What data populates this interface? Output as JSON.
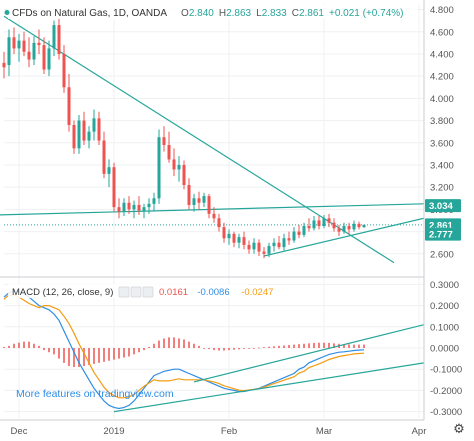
{
  "header": {
    "symbol": "CFDs on Natural Gas, 1D, OANDA",
    "ohlc": [
      {
        "k": "O",
        "v": "2.840"
      },
      {
        "k": "H",
        "v": "2.863"
      },
      {
        "k": "L",
        "v": "2.833"
      },
      {
        "k": "C",
        "v": "2.861"
      }
    ],
    "change": "+0.021 (+0.74%)",
    "colors": {
      "up": "#26a69a",
      "down": "#ef5350",
      "label": "#555555",
      "value": "#26a69a"
    }
  },
  "price_badges": [
    {
      "text": "3.034",
      "value": 3.034,
      "color": "#26a69a"
    },
    {
      "text": "2.861",
      "value": 2.861,
      "color": "#26a69a"
    },
    {
      "text": "2.777",
      "value": 2.777,
      "color": "#26a69a"
    }
  ],
  "macd_header": {
    "label": "MACD (12, 26, close, 9)",
    "values": [
      {
        "text": "0.0161",
        "color": "#ef5350"
      },
      {
        "text": "-0.0086",
        "color": "#2f8de4"
      },
      {
        "text": "-0.0247",
        "color": "#f39c12"
      }
    ]
  },
  "overlay_link": "More features on tradingview.com",
  "settings_icon": "gear-icon",
  "chart_data": [
    {
      "type": "candlestick",
      "title": "CFDs on Natural Gas, 1D, OANDA",
      "ylim": [
        2.4,
        4.85
      ],
      "yticks": [
        "4.800",
        "4.600",
        "4.400",
        "4.200",
        "4.000",
        "3.800",
        "3.600",
        "3.400",
        "3.200",
        "3.000",
        "2.800",
        "2.600"
      ],
      "ytick_values": [
        4.8,
        4.6,
        4.4,
        4.2,
        4.0,
        3.8,
        3.6,
        3.4,
        3.2,
        3.0,
        2.8,
        2.6
      ],
      "x_range": [
        0,
        84
      ],
      "xticks": [
        {
          "label": "Dec",
          "x": 3
        },
        {
          "label": "2019",
          "x": 22
        },
        {
          "label": "Feb",
          "x": 45
        },
        {
          "label": "Mar",
          "x": 64
        },
        {
          "label": "Apr",
          "x": 83
        }
      ],
      "colors": {
        "up": "#26a69a",
        "down": "#ef5350"
      },
      "candles": [
        {
          "x": 0,
          "o": 4.32,
          "h": 4.42,
          "l": 4.18,
          "c": 4.28
        },
        {
          "x": 1,
          "o": 4.3,
          "h": 4.62,
          "l": 4.2,
          "c": 4.55
        },
        {
          "x": 2,
          "o": 4.55,
          "h": 4.64,
          "l": 4.4,
          "c": 4.45
        },
        {
          "x": 3,
          "o": 4.45,
          "h": 4.58,
          "l": 4.33,
          "c": 4.52
        },
        {
          "x": 4,
          "o": 4.52,
          "h": 4.6,
          "l": 4.38,
          "c": 4.42
        },
        {
          "x": 5,
          "o": 4.42,
          "h": 4.55,
          "l": 4.28,
          "c": 4.35
        },
        {
          "x": 6,
          "o": 4.35,
          "h": 4.56,
          "l": 4.3,
          "c": 4.5
        },
        {
          "x": 7,
          "o": 4.5,
          "h": 4.62,
          "l": 4.4,
          "c": 4.48
        },
        {
          "x": 8,
          "o": 4.48,
          "h": 4.55,
          "l": 4.22,
          "c": 4.26
        },
        {
          "x": 9,
          "o": 4.26,
          "h": 4.52,
          "l": 4.2,
          "c": 4.45
        },
        {
          "x": 10,
          "o": 4.45,
          "h": 4.7,
          "l": 4.38,
          "c": 4.66
        },
        {
          "x": 11,
          "o": 4.66,
          "h": 4.72,
          "l": 4.35,
          "c": 4.4
        },
        {
          "x": 12,
          "o": 4.4,
          "h": 4.48,
          "l": 4.05,
          "c": 4.1
        },
        {
          "x": 13,
          "o": 4.1,
          "h": 4.22,
          "l": 3.7,
          "c": 3.76
        },
        {
          "x": 14,
          "o": 3.76,
          "h": 3.8,
          "l": 3.5,
          "c": 3.55
        },
        {
          "x": 15,
          "o": 3.55,
          "h": 3.85,
          "l": 3.5,
          "c": 3.8
        },
        {
          "x": 16,
          "o": 3.8,
          "h": 3.88,
          "l": 3.58,
          "c": 3.62
        },
        {
          "x": 17,
          "o": 3.62,
          "h": 3.75,
          "l": 3.55,
          "c": 3.7
        },
        {
          "x": 18,
          "o": 3.7,
          "h": 3.9,
          "l": 3.62,
          "c": 3.82
        },
        {
          "x": 19,
          "o": 3.82,
          "h": 3.88,
          "l": 3.58,
          "c": 3.62
        },
        {
          "x": 20,
          "o": 3.62,
          "h": 3.7,
          "l": 3.28,
          "c": 3.32
        },
        {
          "x": 21,
          "o": 3.32,
          "h": 3.45,
          "l": 3.2,
          "c": 3.38
        },
        {
          "x": 22,
          "o": 3.38,
          "h": 3.42,
          "l": 2.98,
          "c": 3.02
        },
        {
          "x": 23,
          "o": 3.02,
          "h": 3.1,
          "l": 2.92,
          "c": 2.98
        },
        {
          "x": 24,
          "o": 2.98,
          "h": 3.1,
          "l": 2.94,
          "c": 3.06
        },
        {
          "x": 25,
          "o": 3.06,
          "h": 3.12,
          "l": 2.96,
          "c": 3.0
        },
        {
          "x": 26,
          "o": 3.0,
          "h": 3.08,
          "l": 2.92,
          "c": 3.04
        },
        {
          "x": 27,
          "o": 3.04,
          "h": 3.12,
          "l": 2.95,
          "c": 2.99
        },
        {
          "x": 28,
          "o": 2.99,
          "h": 3.05,
          "l": 2.92,
          "c": 3.02
        },
        {
          "x": 29,
          "o": 3.02,
          "h": 3.1,
          "l": 2.96,
          "c": 3.05
        },
        {
          "x": 30,
          "o": 3.05,
          "h": 3.15,
          "l": 2.98,
          "c": 3.1
        },
        {
          "x": 31,
          "o": 3.1,
          "h": 3.72,
          "l": 3.05,
          "c": 3.65
        },
        {
          "x": 32,
          "o": 3.65,
          "h": 3.75,
          "l": 3.52,
          "c": 3.58
        },
        {
          "x": 33,
          "o": 3.58,
          "h": 3.7,
          "l": 3.42,
          "c": 3.45
        },
        {
          "x": 34,
          "o": 3.45,
          "h": 3.55,
          "l": 3.3,
          "c": 3.36
        },
        {
          "x": 35,
          "o": 3.36,
          "h": 3.48,
          "l": 3.25,
          "c": 3.4
        },
        {
          "x": 36,
          "o": 3.4,
          "h": 3.44,
          "l": 3.18,
          "c": 3.22
        },
        {
          "x": 37,
          "o": 3.22,
          "h": 3.28,
          "l": 3.0,
          "c": 3.04
        },
        {
          "x": 38,
          "o": 3.04,
          "h": 3.14,
          "l": 2.98,
          "c": 3.1
        },
        {
          "x": 39,
          "o": 3.1,
          "h": 3.16,
          "l": 3.0,
          "c": 3.06
        },
        {
          "x": 40,
          "o": 3.06,
          "h": 3.15,
          "l": 3.02,
          "c": 3.12
        },
        {
          "x": 41,
          "o": 3.12,
          "h": 3.14,
          "l": 2.92,
          "c": 2.96
        },
        {
          "x": 42,
          "o": 2.96,
          "h": 3.02,
          "l": 2.88,
          "c": 2.92
        },
        {
          "x": 43,
          "o": 2.92,
          "h": 2.96,
          "l": 2.8,
          "c": 2.84
        },
        {
          "x": 44,
          "o": 2.84,
          "h": 2.88,
          "l": 2.7,
          "c": 2.74
        },
        {
          "x": 45,
          "o": 2.74,
          "h": 2.82,
          "l": 2.68,
          "c": 2.78
        },
        {
          "x": 46,
          "o": 2.78,
          "h": 2.8,
          "l": 2.66,
          "c": 2.7
        },
        {
          "x": 47,
          "o": 2.7,
          "h": 2.78,
          "l": 2.65,
          "c": 2.75
        },
        {
          "x": 48,
          "o": 2.75,
          "h": 2.8,
          "l": 2.64,
          "c": 2.68
        },
        {
          "x": 49,
          "o": 2.68,
          "h": 2.72,
          "l": 2.6,
          "c": 2.64
        },
        {
          "x": 50,
          "o": 2.64,
          "h": 2.74,
          "l": 2.6,
          "c": 2.7
        },
        {
          "x": 51,
          "o": 2.7,
          "h": 2.73,
          "l": 2.58,
          "c": 2.62
        },
        {
          "x": 52,
          "o": 2.62,
          "h": 2.66,
          "l": 2.56,
          "c": 2.6
        },
        {
          "x": 53,
          "o": 2.6,
          "h": 2.7,
          "l": 2.57,
          "c": 2.67
        },
        {
          "x": 54,
          "o": 2.67,
          "h": 2.74,
          "l": 2.62,
          "c": 2.7
        },
        {
          "x": 55,
          "o": 2.7,
          "h": 2.76,
          "l": 2.64,
          "c": 2.66
        },
        {
          "x": 56,
          "o": 2.66,
          "h": 2.78,
          "l": 2.63,
          "c": 2.74
        },
        {
          "x": 57,
          "o": 2.74,
          "h": 2.8,
          "l": 2.68,
          "c": 2.72
        },
        {
          "x": 58,
          "o": 2.72,
          "h": 2.84,
          "l": 2.7,
          "c": 2.8
        },
        {
          "x": 59,
          "o": 2.8,
          "h": 2.86,
          "l": 2.74,
          "c": 2.77
        },
        {
          "x": 60,
          "o": 2.77,
          "h": 2.88,
          "l": 2.75,
          "c": 2.85
        },
        {
          "x": 61,
          "o": 2.85,
          "h": 2.92,
          "l": 2.8,
          "c": 2.83
        },
        {
          "x": 62,
          "o": 2.83,
          "h": 2.94,
          "l": 2.81,
          "c": 2.9
        },
        {
          "x": 63,
          "o": 2.9,
          "h": 2.94,
          "l": 2.82,
          "c": 2.85
        },
        {
          "x": 64,
          "o": 2.85,
          "h": 2.95,
          "l": 2.83,
          "c": 2.92
        },
        {
          "x": 65,
          "o": 2.92,
          "h": 2.96,
          "l": 2.84,
          "c": 2.88
        },
        {
          "x": 66,
          "o": 2.88,
          "h": 2.92,
          "l": 2.8,
          "c": 2.83
        },
        {
          "x": 67,
          "o": 2.83,
          "h": 2.86,
          "l": 2.76,
          "c": 2.8
        },
        {
          "x": 68,
          "o": 2.8,
          "h": 2.88,
          "l": 2.78,
          "c": 2.85
        },
        {
          "x": 69,
          "o": 2.85,
          "h": 2.88,
          "l": 2.78,
          "c": 2.82
        },
        {
          "x": 70,
          "o": 2.82,
          "h": 2.9,
          "l": 2.8,
          "c": 2.87
        },
        {
          "x": 71,
          "o": 2.87,
          "h": 2.89,
          "l": 2.82,
          "c": 2.84
        },
        {
          "x": 72,
          "o": 2.84,
          "h": 2.863,
          "l": 2.833,
          "c": 2.861
        }
      ],
      "trendlines": [
        {
          "name": "downtrend",
          "x1": 0,
          "y1": 4.74,
          "x2": 78,
          "y2": 2.52,
          "color": "#26a69a"
        },
        {
          "name": "horizontal-resistance",
          "x1": -1,
          "y1": 2.95,
          "x2": 84,
          "y2": 3.05,
          "color": "#26a69a"
        },
        {
          "name": "uptrend",
          "x1": 52,
          "y1": 2.58,
          "x2": 84,
          "y2": 2.92,
          "color": "#26a69a"
        }
      ],
      "hline": {
        "value": 2.861,
        "style": "dotted",
        "color": "#26a69a"
      }
    },
    {
      "type": "macd",
      "title": "MACD (12, 26, close, 9)",
      "ylim": [
        -0.33,
        0.33
      ],
      "yticks": [
        "0.3000",
        "0.2000",
        "0.1000",
        "0.0000",
        "-0.1000",
        "-0.2000",
        "-0.3000"
      ],
      "ytick_values": [
        0.3,
        0.2,
        0.1,
        0.0,
        -0.1,
        -0.2,
        -0.3
      ],
      "x_range": [
        0,
        84
      ],
      "series": [
        {
          "name": "Histogram",
          "color": "#ef5350",
          "values": [
            0.005,
            0.01,
            0.02,
            0.025,
            0.03,
            0.03,
            0.02,
            0.01,
            -0.01,
            -0.02,
            -0.03,
            -0.05,
            -0.07,
            -0.085,
            -0.09,
            -0.09,
            -0.085,
            -0.08,
            -0.075,
            -0.07,
            -0.065,
            -0.06,
            -0.055,
            -0.05,
            -0.045,
            -0.04,
            -0.03,
            -0.02,
            -0.01,
            0.005,
            0.02,
            0.035,
            0.045,
            0.05,
            0.05,
            0.045,
            0.04,
            0.03,
            0.02,
            0.01,
            0.0,
            -0.005,
            -0.01,
            -0.012,
            -0.012,
            -0.01,
            -0.008,
            -0.006,
            -0.004,
            -0.002,
            0.0,
            0.002,
            0.004,
            0.006,
            0.008,
            0.01,
            0.012,
            0.014,
            0.016,
            0.018,
            0.02,
            0.022,
            0.024,
            0.025,
            0.025,
            0.024,
            0.022,
            0.02,
            0.018,
            0.017,
            0.016,
            0.016,
            0.0161
          ]
        },
        {
          "name": "MACD",
          "color": "#2f8de4",
          "values": [
            0.24,
            0.26,
            0.27,
            0.265,
            0.255,
            0.24,
            0.22,
            0.2,
            0.19,
            0.18,
            0.16,
            0.13,
            0.08,
            0.03,
            -0.02,
            -0.07,
            -0.11,
            -0.15,
            -0.19,
            -0.22,
            -0.25,
            -0.27,
            -0.28,
            -0.285,
            -0.28,
            -0.27,
            -0.25,
            -0.22,
            -0.19,
            -0.16,
            -0.13,
            -0.12,
            -0.11,
            -0.105,
            -0.1,
            -0.1,
            -0.11,
            -0.12,
            -0.13,
            -0.14,
            -0.15,
            -0.16,
            -0.17,
            -0.18,
            -0.19,
            -0.195,
            -0.2,
            -0.205,
            -0.205,
            -0.2,
            -0.195,
            -0.19,
            -0.18,
            -0.17,
            -0.16,
            -0.15,
            -0.14,
            -0.13,
            -0.12,
            -0.1,
            -0.09,
            -0.07,
            -0.06,
            -0.05,
            -0.04,
            -0.03,
            -0.025,
            -0.02,
            -0.018,
            -0.015,
            -0.012,
            -0.01,
            -0.0086
          ]
        },
        {
          "name": "Signal",
          "color": "#f39c12",
          "values": [
            0.23,
            0.25,
            0.25,
            0.24,
            0.225,
            0.21,
            0.2,
            0.19,
            0.2,
            0.2,
            0.19,
            0.18,
            0.15,
            0.115,
            0.07,
            0.02,
            -0.025,
            -0.07,
            -0.115,
            -0.15,
            -0.185,
            -0.21,
            -0.225,
            -0.235,
            -0.235,
            -0.23,
            -0.22,
            -0.2,
            -0.18,
            -0.165,
            -0.15,
            -0.155,
            -0.155,
            -0.155,
            -0.15,
            -0.145,
            -0.15,
            -0.15,
            -0.15,
            -0.15,
            -0.15,
            -0.155,
            -0.16,
            -0.168,
            -0.178,
            -0.185,
            -0.192,
            -0.199,
            -0.201,
            -0.198,
            -0.195,
            -0.192,
            -0.184,
            -0.176,
            -0.168,
            -0.16,
            -0.152,
            -0.144,
            -0.136,
            -0.118,
            -0.11,
            -0.092,
            -0.084,
            -0.075,
            -0.065,
            -0.054,
            -0.047,
            -0.04,
            -0.036,
            -0.032,
            -0.028,
            -0.026,
            -0.0247
          ]
        }
      ],
      "trendlines": [
        {
          "name": "macd-upper-trend",
          "x1": 38,
          "y1": -0.16,
          "x2": 84,
          "y2": 0.11,
          "color": "#26a69a"
        },
        {
          "name": "macd-lower-trend",
          "x1": 22,
          "y1": -0.3,
          "x2": 84,
          "y2": -0.07,
          "color": "#26a69a"
        }
      ]
    }
  ]
}
